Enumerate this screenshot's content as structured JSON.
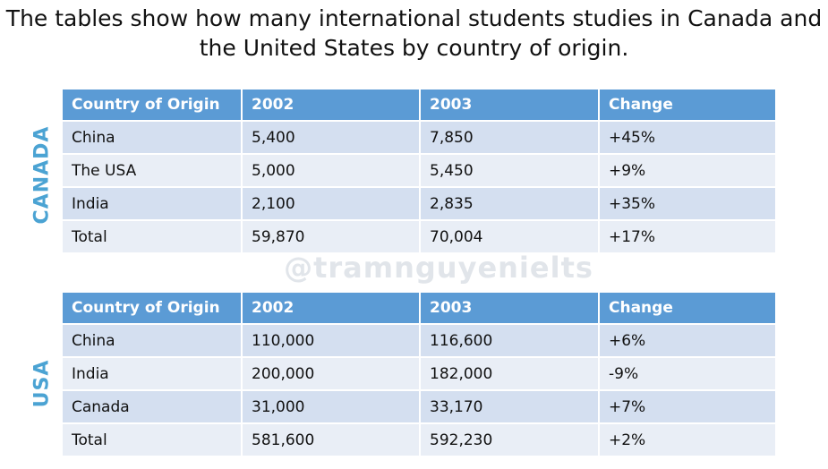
{
  "title_line1": "The tables show how many international students studies in Canada and",
  "title_line2": "the United States by country of origin.",
  "watermark": "@tramnguyenielts",
  "chart_data": [
    {
      "type": "table",
      "label": "CANADA",
      "columns": [
        "Country of Origin",
        "2002",
        "2003",
        "Change"
      ],
      "rows": [
        [
          "China",
          "5,400",
          "7,850",
          "+45%"
        ],
        [
          "The USA",
          "5,000",
          "5,450",
          "+9%"
        ],
        [
          "India",
          "2,100",
          "2,835",
          "+35%"
        ],
        [
          "Total",
          "59,870",
          "70,004",
          "+17%"
        ]
      ]
    },
    {
      "type": "table",
      "label": "USA",
      "columns": [
        "Country of Origin",
        "2002",
        "2003",
        "Change"
      ],
      "rows": [
        [
          "China",
          "110,000",
          "116,600",
          "+6%"
        ],
        [
          "India",
          "200,000",
          "182,000",
          "-9%"
        ],
        [
          "Canada",
          "31,000",
          "33,170",
          "+7%"
        ],
        [
          "Total",
          "581,600",
          "592,230",
          "+2%"
        ]
      ]
    }
  ],
  "colors": {
    "header_bg": "#5b9bd5",
    "row_odd": "#d4dff0",
    "row_even": "#e9eef6",
    "side_label": "#4ba3d3"
  }
}
